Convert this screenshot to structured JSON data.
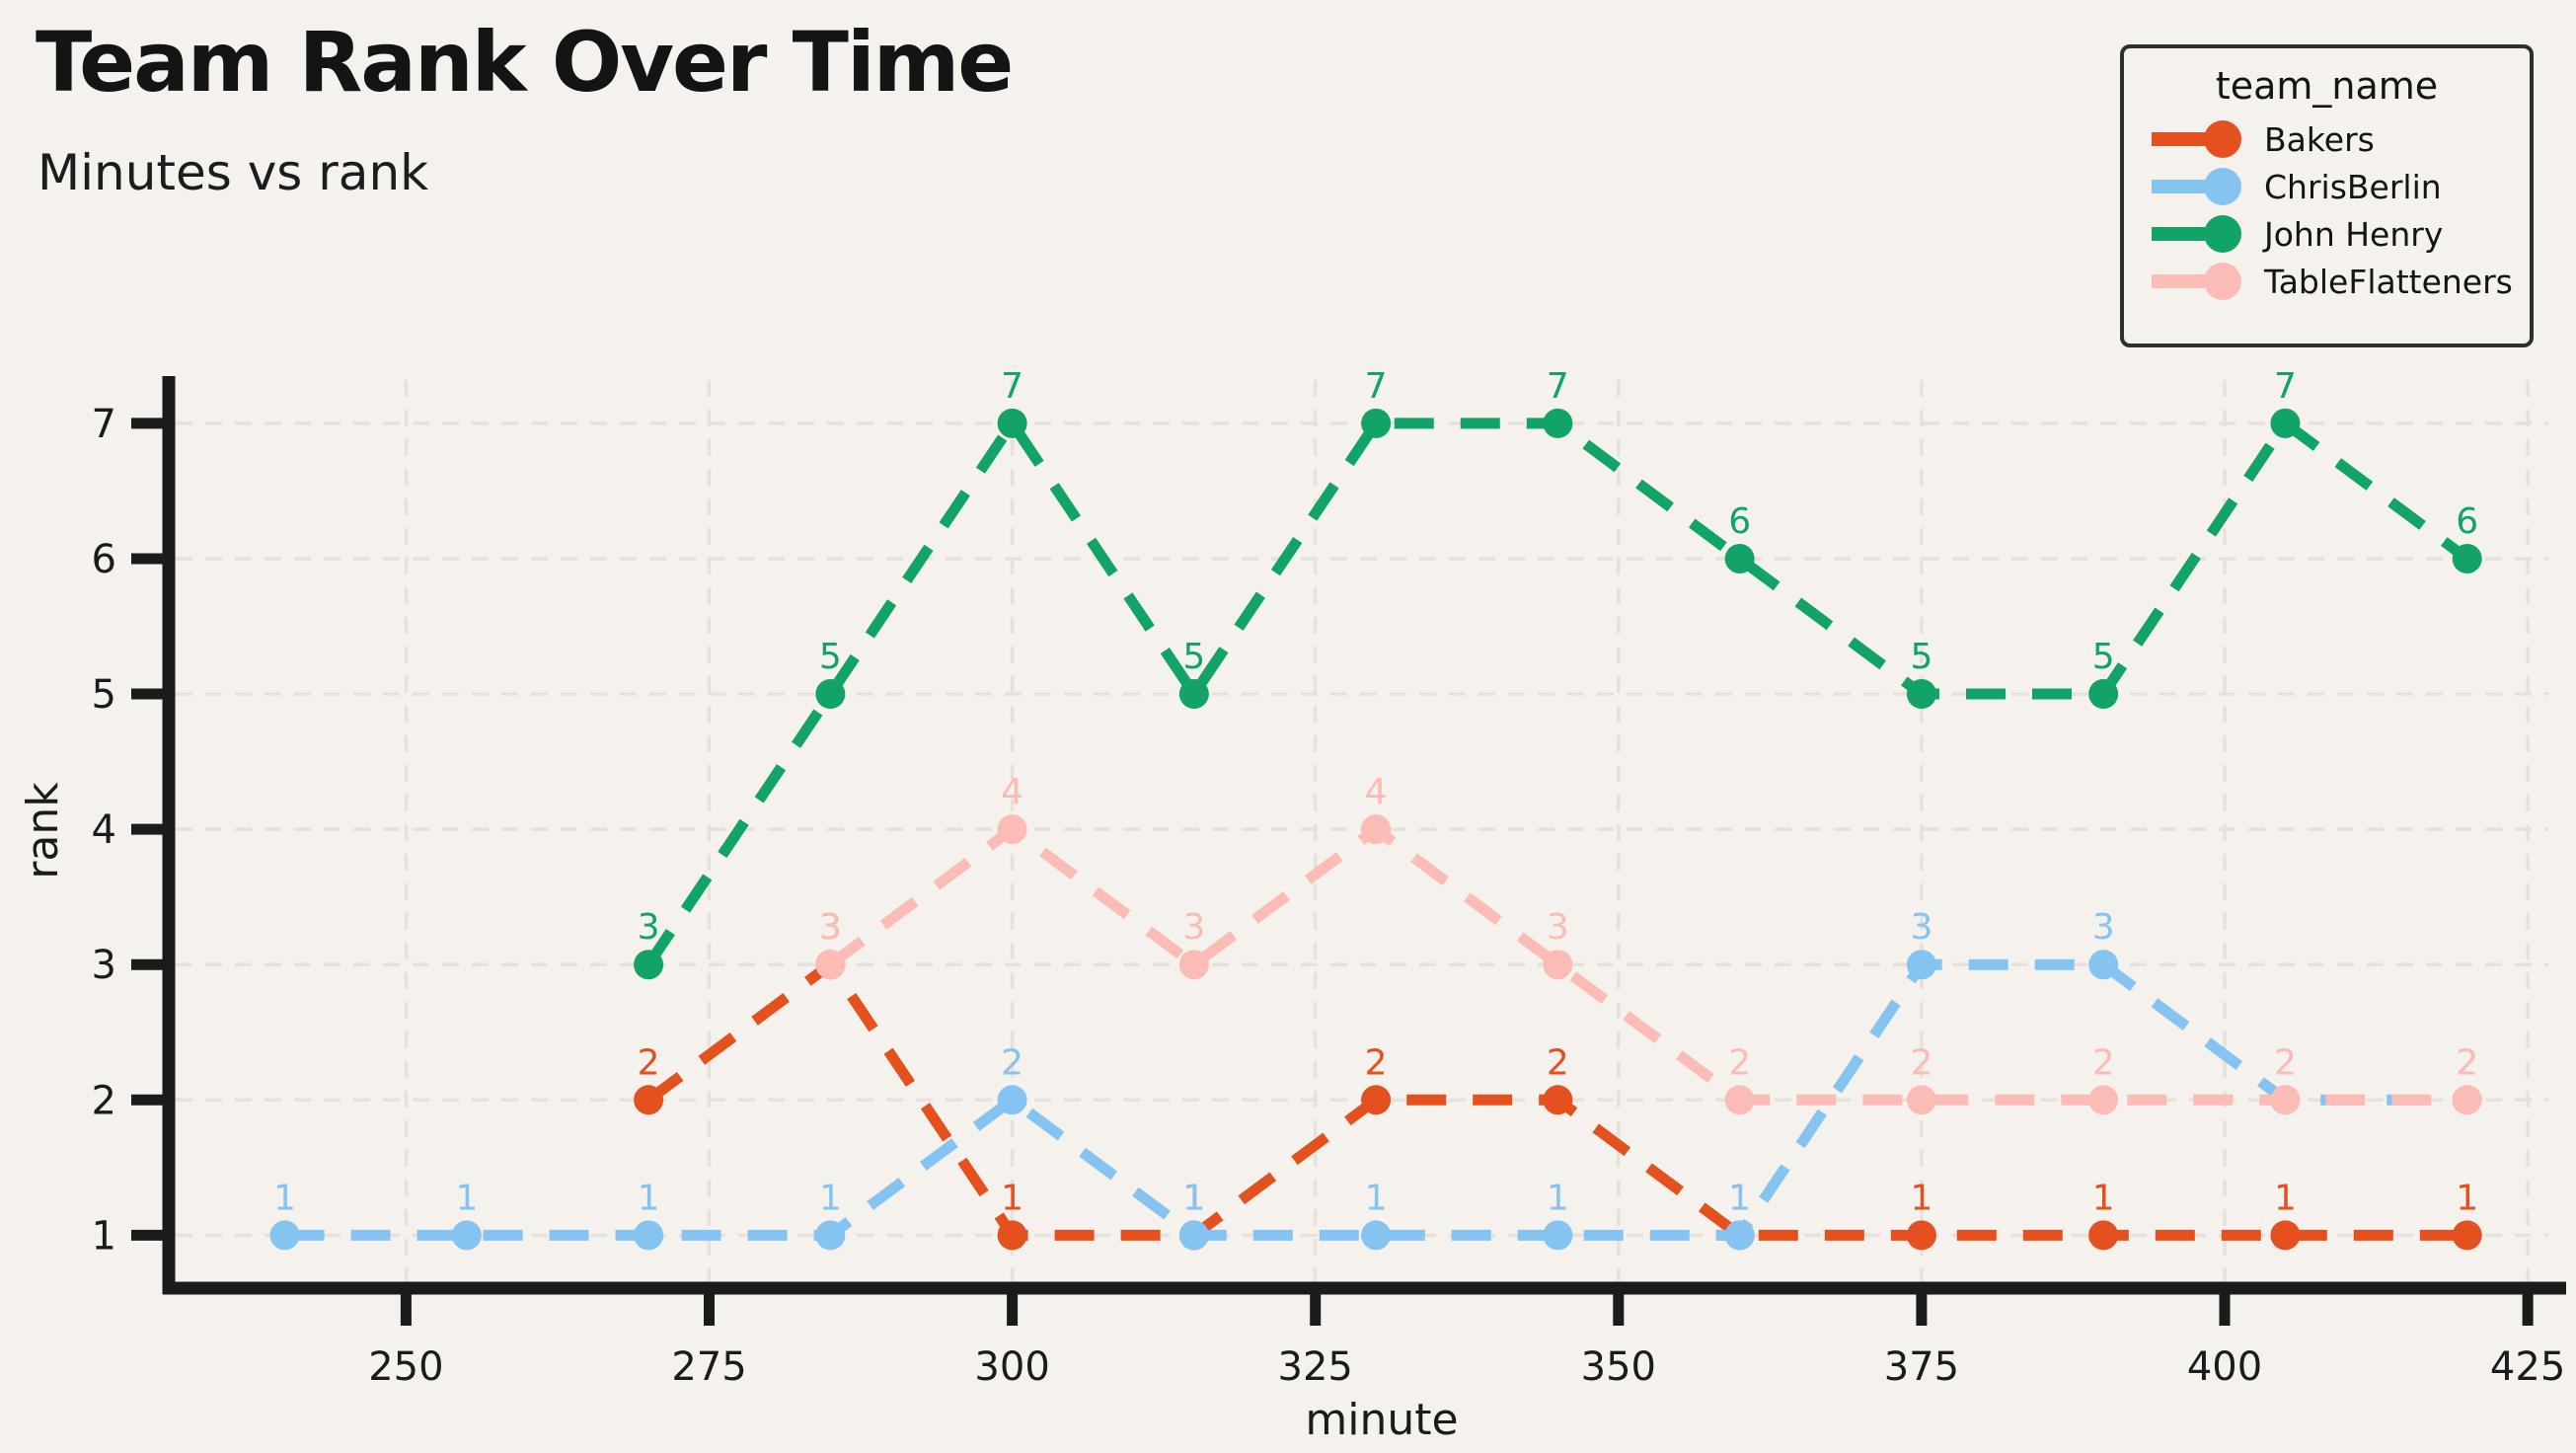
{
  "chart_data": {
    "type": "line",
    "title": "Team Rank Over Time",
    "subtitle": "Minutes vs rank",
    "xlabel": "minute",
    "ylabel": "rank",
    "legend_title": "team_name",
    "legend_position": "top-right",
    "grid": true,
    "line_style": "dashed",
    "point_labels": "rank value above each point",
    "x_ticks": [
      250,
      275,
      300,
      325,
      350,
      375,
      400,
      425
    ],
    "y_ticks": [
      1,
      2,
      3,
      4,
      5,
      6,
      7
    ],
    "xlim": [
      231,
      426.7
    ],
    "ylim": [
      0.66,
      7.32
    ],
    "theme_colors": {
      "background": "#F5F1EC",
      "gridline": "#E5E2DB",
      "axis": "#1B1B1B"
    },
    "series": [
      {
        "name": "Bakers",
        "color": "#E4501E",
        "points": [
          [
            270,
            2
          ],
          [
            285,
            3
          ],
          [
            300,
            1
          ],
          [
            315,
            1
          ],
          [
            330,
            2
          ],
          [
            345,
            2
          ],
          [
            360,
            1
          ],
          [
            375,
            1
          ],
          [
            390,
            1
          ],
          [
            405,
            1
          ],
          [
            420,
            1
          ]
        ]
      },
      {
        "name": "ChrisBerlin",
        "color": "#85C3F0",
        "points": [
          [
            240,
            1
          ],
          [
            255,
            1
          ],
          [
            270,
            1
          ],
          [
            285,
            1
          ],
          [
            300,
            2
          ],
          [
            315,
            1
          ],
          [
            330,
            1
          ],
          [
            345,
            1
          ],
          [
            360,
            1
          ],
          [
            375,
            3
          ],
          [
            390,
            3
          ],
          [
            405,
            2
          ],
          [
            420,
            2
          ]
        ]
      },
      {
        "name": "John Henry",
        "color": "#11A368",
        "points": [
          [
            270,
            3
          ],
          [
            285,
            5
          ],
          [
            300,
            7
          ],
          [
            315,
            5
          ],
          [
            330,
            7
          ],
          [
            345,
            7
          ],
          [
            360,
            6
          ],
          [
            375,
            5
          ],
          [
            390,
            5
          ],
          [
            405,
            7
          ],
          [
            420,
            6
          ]
        ]
      },
      {
        "name": "TableFlatteners",
        "color": "#FBBCB5",
        "points": [
          [
            285,
            3
          ],
          [
            300,
            4
          ],
          [
            315,
            3
          ],
          [
            330,
            4
          ],
          [
            345,
            3
          ],
          [
            360,
            2
          ],
          [
            375,
            2
          ],
          [
            390,
            2
          ],
          [
            405,
            2
          ],
          [
            420,
            2
          ]
        ]
      }
    ]
  }
}
